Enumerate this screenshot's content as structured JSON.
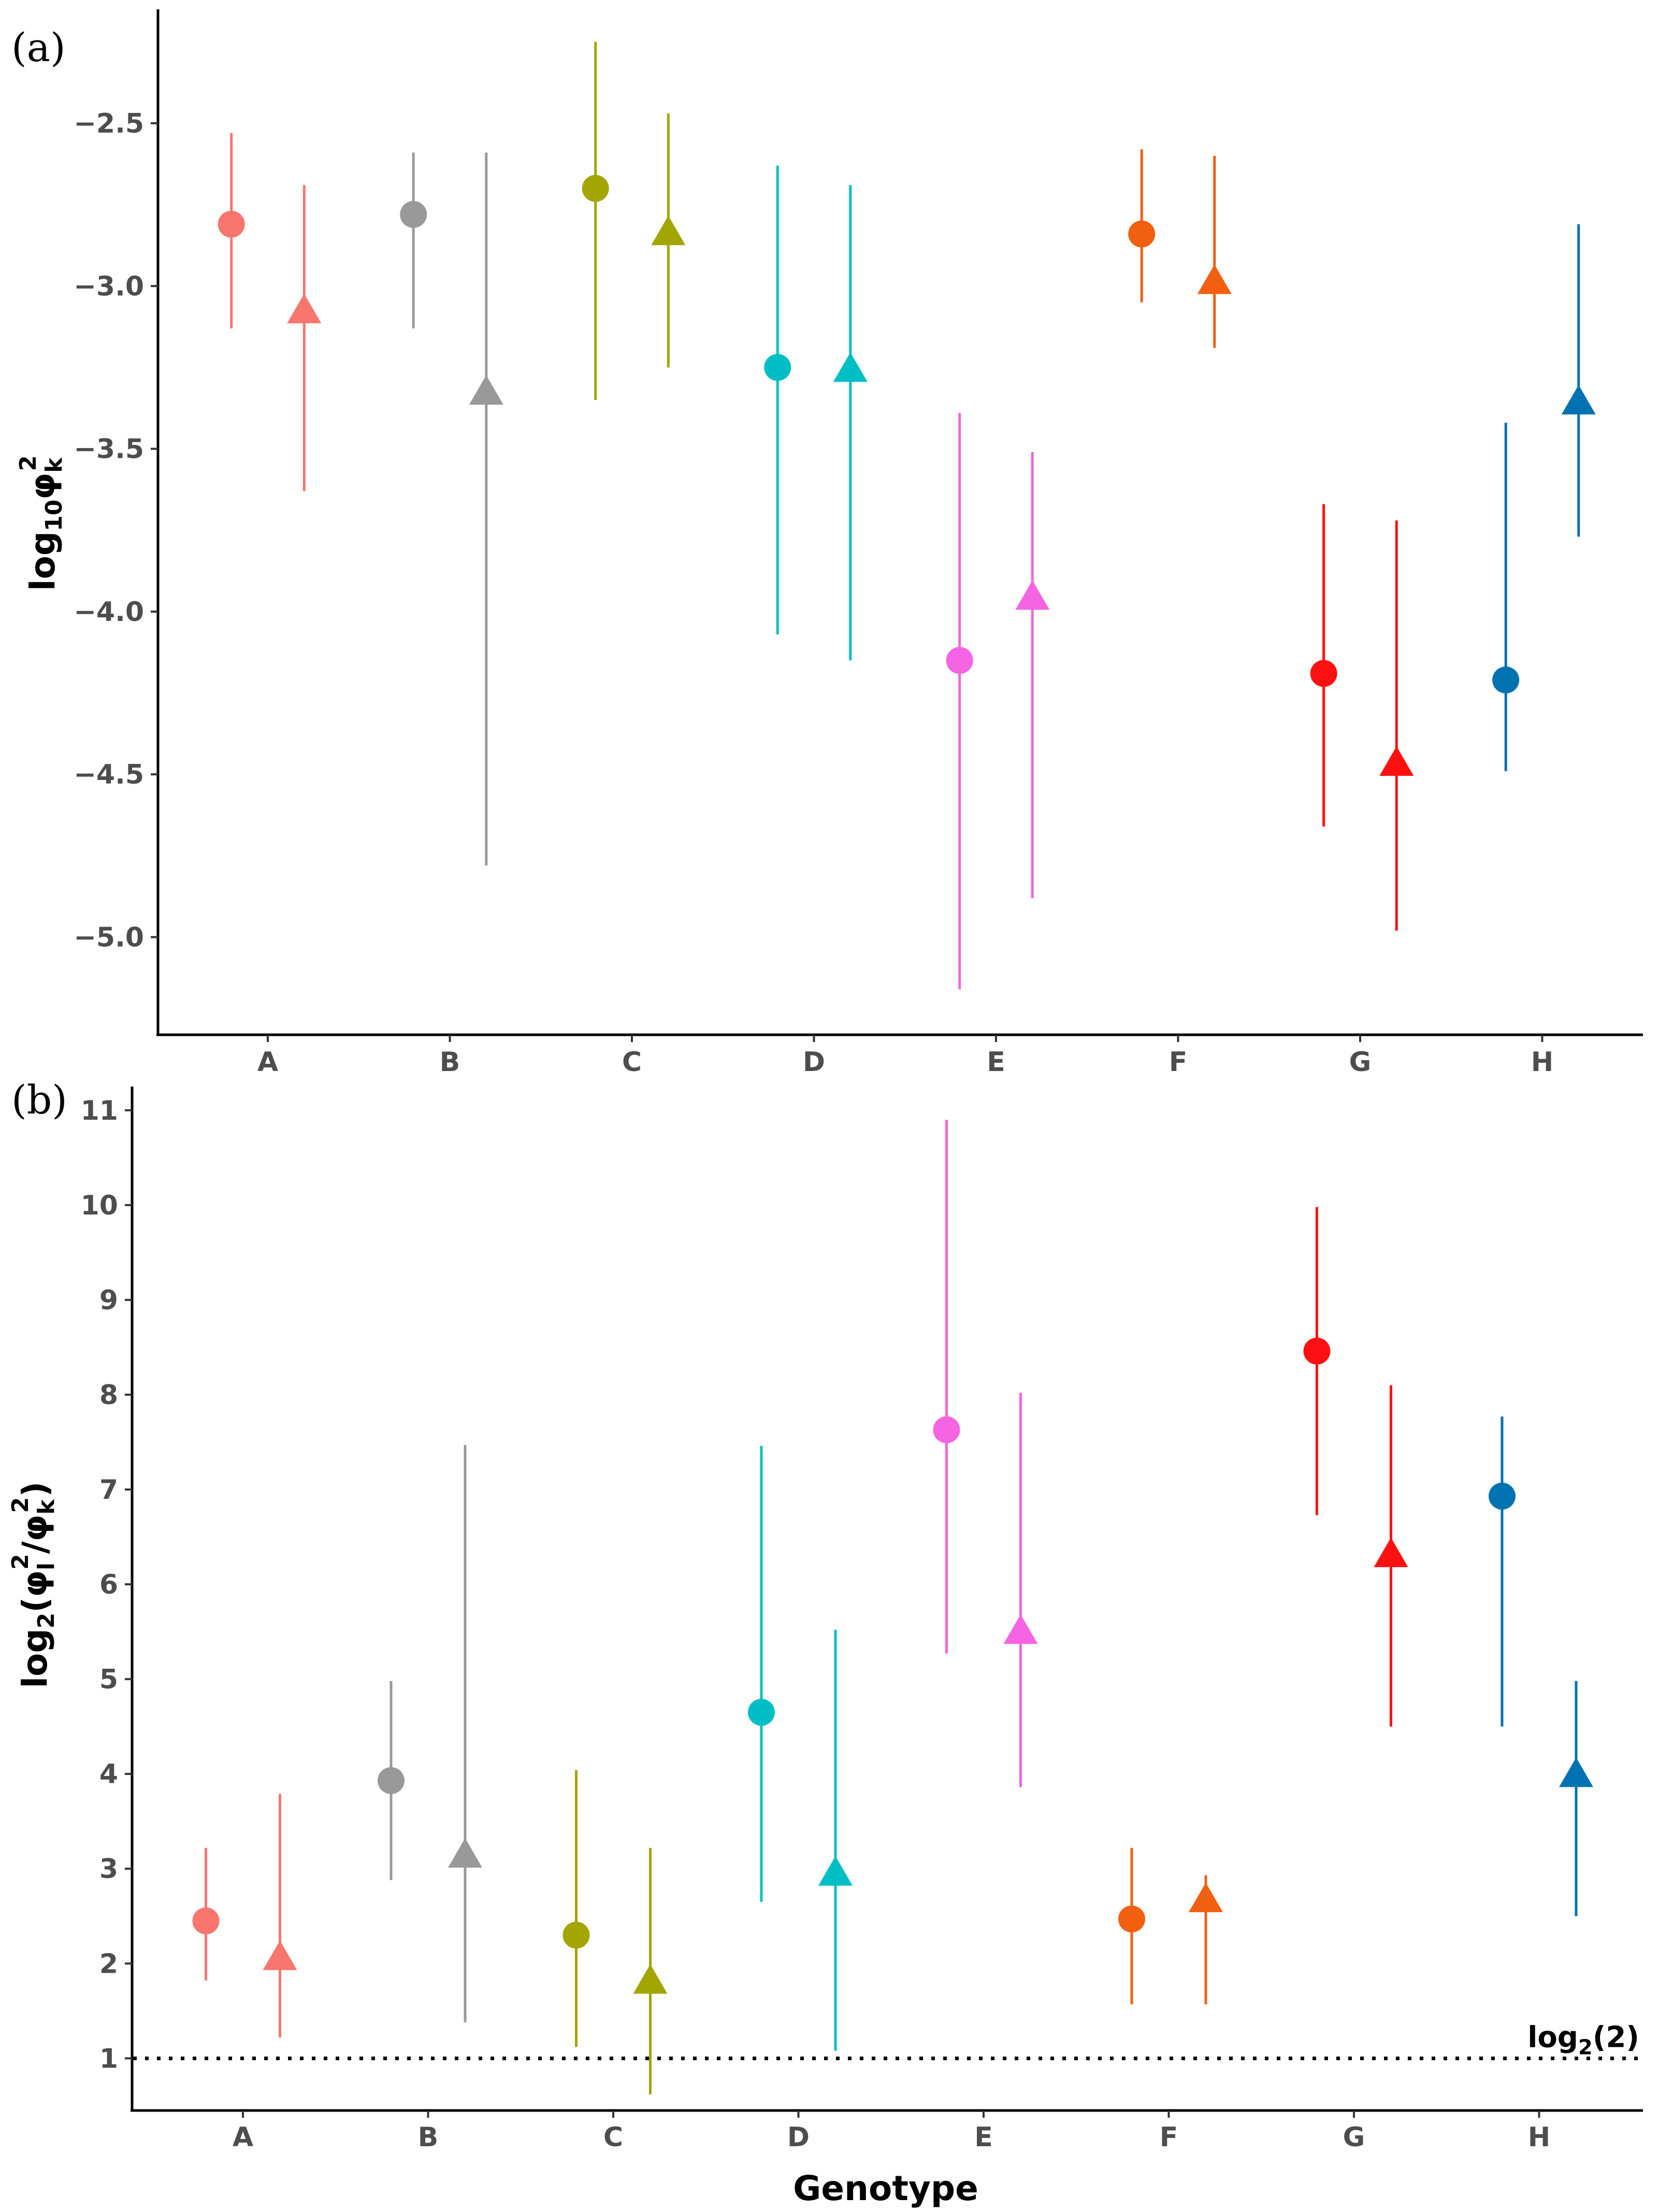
{
  "figure": {
    "panel_a_label": "(a)",
    "panel_b_label": "(b)",
    "xlabel": "Genotype"
  },
  "colors": {
    "A": "#F8766D",
    "B": "#999999",
    "C": "#A3A500",
    "D": "#00BFC4",
    "E": "#F564E3",
    "F": "#F06010",
    "G": "#FF1010",
    "H": "#0072B2"
  },
  "chart_data": [
    {
      "type": "scatter",
      "panel": "(a)",
      "title": "",
      "xlabel": "",
      "ylabel": "log10φk2",
      "ylabel_parts": {
        "main": "log",
        "sub": "10",
        "greek": "φ",
        "greek_sub": "k",
        "sup": "2"
      },
      "categories": [
        "A",
        "B",
        "C",
        "D",
        "E",
        "F",
        "G",
        "H"
      ],
      "ylim": [
        -5.3,
        -2.15
      ],
      "yticks": [
        -5.0,
        -4.5,
        -4.0,
        -3.5,
        -3.0,
        -2.5
      ],
      "ytick_labels": [
        "−5.0",
        "−4.5",
        "−4.0",
        "−3.5",
        "−3.0",
        "−2.5"
      ],
      "grid": false,
      "series": [
        {
          "name": "circle",
          "marker": "circle",
          "offset": -0.2,
          "values": [
            -2.81,
            -2.78,
            -2.7,
            -3.25,
            -4.15,
            -2.84,
            -4.19,
            -4.21
          ],
          "lower": [
            -3.13,
            -3.13,
            -3.35,
            -4.07,
            -5.16,
            -3.05,
            -4.66,
            -4.49
          ],
          "upper": [
            -2.53,
            -2.59,
            -2.25,
            -2.63,
            -3.39,
            -2.58,
            -3.67,
            -3.42
          ]
        },
        {
          "name": "triangle",
          "marker": "triangle",
          "offset": 0.2,
          "values": [
            -3.08,
            -3.33,
            -2.84,
            -3.26,
            -3.96,
            -2.99,
            -4.47,
            -3.36
          ],
          "lower": [
            -3.63,
            -4.78,
            -3.25,
            -4.15,
            -4.88,
            -3.19,
            -4.98,
            -3.77
          ],
          "upper": [
            -2.69,
            -2.59,
            -2.47,
            -2.69,
            -3.51,
            -2.6,
            -3.72,
            -2.81
          ]
        }
      ]
    },
    {
      "type": "scatter",
      "panel": "(b)",
      "title": "",
      "xlabel": "Genotype",
      "ylabel": "log2(φl2/φk2)",
      "ylabel_parts": {
        "main": "log",
        "sub": "2",
        "open": "(",
        "g1": "φ",
        "g1_sub": "l",
        "g1_sup": "2",
        "slash": "/",
        "g2": "φ",
        "g2_sub": "k",
        "g2_sup": "2",
        "close": ")"
      },
      "categories": [
        "A",
        "B",
        "C",
        "D",
        "E",
        "F",
        "G",
        "H"
      ],
      "ylim": [
        0.45,
        11.25
      ],
      "yticks": [
        1,
        2,
        3,
        4,
        5,
        6,
        7,
        8,
        9,
        10,
        11
      ],
      "ytick_labels": [
        "1",
        "2",
        "3",
        "4",
        "5",
        "6",
        "7",
        "8",
        "9",
        "10",
        "11"
      ],
      "grid": false,
      "reference_line": {
        "y": 1,
        "style": "dotted",
        "label_main": "log",
        "label_sub": "2",
        "label_rest": "(2)"
      },
      "series": [
        {
          "name": "circle",
          "marker": "circle",
          "offset": -0.2,
          "values": [
            2.45,
            3.93,
            2.3,
            4.65,
            7.63,
            2.47,
            8.46,
            6.93
          ],
          "lower": [
            1.82,
            2.88,
            1.12,
            2.65,
            5.27,
            1.57,
            6.73,
            4.5
          ],
          "upper": [
            3.22,
            4.98,
            4.04,
            7.46,
            10.9,
            3.22,
            9.98,
            7.77
          ]
        },
        {
          "name": "triangle",
          "marker": "triangle",
          "offset": 0.2,
          "values": [
            2.05,
            3.13,
            1.8,
            2.94,
            5.49,
            2.66,
            6.3,
            3.98
          ],
          "lower": [
            1.22,
            1.38,
            0.62,
            1.08,
            3.86,
            1.57,
            4.5,
            2.5
          ],
          "upper": [
            3.79,
            7.47,
            3.22,
            5.52,
            8.02,
            2.93,
            8.1,
            4.98
          ]
        }
      ]
    }
  ]
}
